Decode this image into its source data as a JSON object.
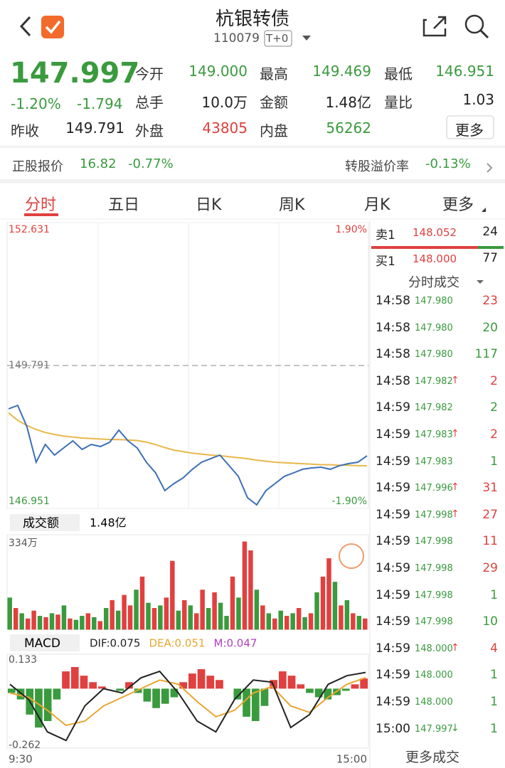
{
  "header": {
    "title": "杭银转债",
    "code": "110079",
    "tag": "T+0"
  },
  "quote": {
    "price": "147.997",
    "change_pct": "-1.20%",
    "change": "-1.794",
    "stats": [
      {
        "label": "今开",
        "value": "149.000"
      },
      {
        "label": "最高",
        "value": "149.469"
      },
      {
        "label": "最低",
        "value": "146.951"
      },
      {
        "label": "总手",
        "value": "10.0万"
      },
      {
        "label": "金额",
        "value": "1.48亿"
      },
      {
        "label": "量比",
        "value": "1.03"
      },
      {
        "label": "昨收",
        "value": "149.791"
      },
      {
        "label": "外盘",
        "value": "43805"
      },
      {
        "label": "内盘",
        "value": "56262"
      }
    ],
    "more": "更多"
  },
  "stock": {
    "label": "正股报价",
    "price": "16.82",
    "change_pct": "-0.77%",
    "premium_label": "转股溢价率",
    "premium": "-0.13%"
  },
  "tabs": [
    "分时",
    "五日",
    "日K",
    "周K",
    "月K",
    "更多"
  ],
  "intraday": {
    "type": "line",
    "ylim": [
      146.951,
      152.631
    ],
    "yticks": [
      146.951,
      149.791,
      152.631
    ],
    "y2lim": [
      -1.9,
      1.9
    ],
    "y2ticks": [
      {
        "value": -1.9,
        "label": "-1.90%"
      },
      {
        "value": 1.9,
        "label": "1.90%"
      }
    ],
    "lines": [
      {
        "color": "#3d6fb6",
        "values": [
          148.929,
          148.999,
          148.576,
          147.87,
          148.223,
          148.011,
          148.153,
          148.294,
          148.124,
          148.223,
          148.181,
          148.266,
          148.506,
          148.294,
          148.153,
          147.87,
          147.658,
          147.305,
          147.446,
          147.559,
          147.729,
          147.87,
          147.941,
          148.011,
          147.8,
          147.588,
          147.164,
          147.023,
          147.305,
          147.446,
          147.588,
          147.658,
          147.729,
          147.757,
          147.771,
          147.729,
          147.8,
          147.842,
          147.87,
          147.997
        ]
      },
      {
        "color": "#e8b84a",
        "values": [
          148.85,
          148.7,
          148.6,
          148.52,
          148.46,
          148.42,
          148.39,
          148.37,
          148.35,
          148.34,
          148.33,
          148.32,
          148.32,
          148.31,
          148.3,
          148.27,
          148.22,
          148.16,
          148.11,
          148.08,
          148.05,
          148.03,
          148.01,
          148.0,
          147.98,
          147.96,
          147.94,
          147.91,
          147.89,
          147.87,
          147.86,
          147.85,
          147.84,
          147.83,
          147.82,
          147.82,
          147.81,
          147.81,
          147.8,
          147.8
        ]
      }
    ]
  },
  "volume": {
    "type": "bar",
    "label": "成交额",
    "total": "1.48亿",
    "ylim": [
      0,
      334
    ],
    "yticks": [
      {
        "value": 334,
        "label": "334万"
      }
    ],
    "up_color": "#e0403f",
    "down_color": "#3a9a3e",
    "rising": [
      false,
      true,
      false,
      true,
      true,
      false,
      true,
      false,
      true,
      false,
      true,
      false,
      false,
      true,
      false,
      true,
      false,
      true,
      false,
      true,
      true,
      false,
      true,
      false,
      true,
      false,
      true,
      true,
      false,
      true,
      false,
      true,
      true,
      false,
      true,
      false,
      false,
      true,
      false,
      true,
      true,
      false,
      true,
      false,
      true,
      false,
      true,
      false,
      true,
      false,
      true,
      false,
      true,
      true,
      false,
      true,
      false,
      true,
      false,
      true
    ],
    "values": [
      120,
      80,
      60,
      40,
      70,
      50,
      45,
      60,
      55,
      90,
      40,
      35,
      50,
      60,
      45,
      30,
      80,
      110,
      70,
      130,
      90,
      150,
      200,
      100,
      80,
      90,
      120,
      260,
      70,
      110,
      90,
      60,
      150,
      80,
      140,
      100,
      50,
      200,
      120,
      334,
      300,
      150,
      90,
      60,
      40,
      70,
      50,
      60,
      80,
      45,
      60,
      140,
      200,
      270,
      180,
      90,
      110,
      60,
      50,
      40
    ]
  },
  "macd": {
    "type": "bar",
    "label": "MACD",
    "legend": [
      {
        "name": "DIF:",
        "value": 0.075,
        "color": "#222222"
      },
      {
        "name": "DEA:",
        "value": 0.051,
        "color": "#e8a630"
      },
      {
        "name": "M:",
        "value": 0.047,
        "color": "#b040c0"
      }
    ],
    "ylim": [
      -0.262,
      0.133
    ],
    "yticks": [
      -0.262,
      0.133
    ],
    "up_color": "#e0403f",
    "down_color": "#3a9a3e",
    "m": [
      -0.02,
      -0.05,
      -0.12,
      -0.18,
      -0.15,
      -0.05,
      0.08,
      0.1,
      0.06,
      0.03,
      0.01,
      0.0,
      -0.01,
      0.03,
      -0.02,
      -0.06,
      -0.09,
      -0.07,
      -0.04,
      0.03,
      0.07,
      0.09,
      0.06,
      0.04,
      0.0,
      -0.05,
      -0.13,
      -0.15,
      -0.08,
      0.04,
      0.08,
      0.06,
      0.02,
      -0.02,
      -0.04,
      -0.05,
      -0.03,
      -0.01,
      0.02,
      0.047
    ],
    "dif": [
      0.02,
      -0.05,
      -0.2,
      -0.24,
      -0.08,
      0.0,
      -0.02,
      0.05,
      0.08,
      -0.02,
      -0.15,
      -0.2,
      -0.05,
      0.04,
      0.03,
      -0.18,
      -0.12,
      0.02,
      0.06,
      0.075
    ],
    "dea": [
      -0.02,
      -0.04,
      -0.1,
      -0.17,
      -0.15,
      -0.08,
      -0.04,
      0.0,
      0.04,
      0.02,
      -0.06,
      -0.13,
      -0.1,
      -0.02,
      0.01,
      -0.08,
      -0.11,
      -0.04,
      0.02,
      0.051
    ],
    "x_labels": [
      "9:30",
      "15:00"
    ]
  },
  "order_book": {
    "rows": [
      {
        "label": "卖1",
        "price": "148.052",
        "volume": "24"
      },
      {
        "label": "买1",
        "price": "148.000",
        "volume": "77"
      }
    ]
  },
  "trades": {
    "title": "分时成交",
    "more": "更多成交",
    "rows": [
      {
        "time": "14:58",
        "price": "147.980",
        "volume": "23",
        "color": "#e0403f"
      },
      {
        "time": "14:58",
        "price": "147.980",
        "volume": "20",
        "color": "#3a9a3e"
      },
      {
        "time": "14:58",
        "price": "147.980",
        "volume": "117",
        "color": "#3a9a3e"
      },
      {
        "time": "14:58",
        "price": "147.982",
        "arrow": "↑",
        "volume": "2",
        "color": "#e0403f"
      },
      {
        "time": "14:59",
        "price": "147.982",
        "volume": "2",
        "color": "#3a9a3e"
      },
      {
        "time": "14:59",
        "price": "147.983",
        "arrow": "↑",
        "volume": "2",
        "color": "#e0403f"
      },
      {
        "time": "14:59",
        "price": "147.983",
        "volume": "1",
        "color": "#3a9a3e"
      },
      {
        "time": "14:59",
        "price": "147.996",
        "arrow": "↑",
        "volume": "31",
        "color": "#e0403f"
      },
      {
        "time": "14:59",
        "price": "147.998",
        "arrow": "↑",
        "volume": "27",
        "color": "#e0403f"
      },
      {
        "time": "14:59",
        "price": "147.998",
        "volume": "11",
        "color": "#e0403f"
      },
      {
        "time": "14:59",
        "price": "147.998",
        "volume": "29",
        "color": "#e0403f"
      },
      {
        "time": "14:59",
        "price": "147.998",
        "volume": "1",
        "color": "#3a9a3e"
      },
      {
        "time": "14:59",
        "price": "147.998",
        "volume": "10",
        "color": "#3a9a3e"
      },
      {
        "time": "14:59",
        "price": "148.000",
        "arrow": "↑",
        "volume": "4",
        "color": "#e0403f"
      },
      {
        "time": "14:59",
        "price": "148.000",
        "volume": "1",
        "color": "#3a9a3e"
      },
      {
        "time": "14:59",
        "price": "148.000",
        "volume": "1",
        "color": "#3a9a3e"
      },
      {
        "time": "15:00",
        "price": "147.997",
        "arrow": "↓",
        "volume": "1",
        "color": "#3a9a3e"
      }
    ]
  }
}
